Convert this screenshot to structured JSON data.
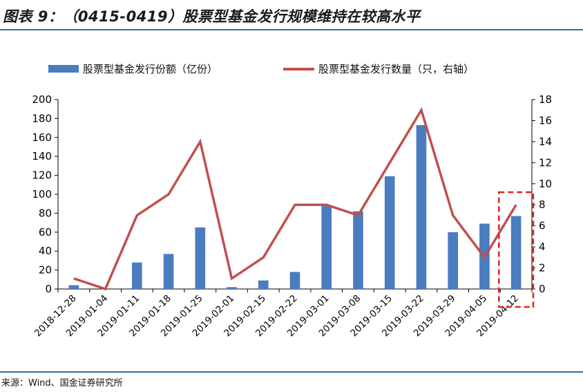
{
  "title": "图表 9：（0415-0419）股票型基金发行规模维持在较高水平",
  "source": "来源：Wind、国金证券研究所",
  "colors": {
    "bar": "#4a7dbf",
    "line": "#c0504d",
    "rule": "#2e6fa8",
    "highlight_box": "#e0241b"
  },
  "chart_data": {
    "type": "bar",
    "categories": [
      "2018-12-28",
      "2019-01-04",
      "2019-01-11",
      "2019-01-18",
      "2019-01-25",
      "2019-02-01",
      "2019-02-15",
      "2019-02-22",
      "2019-03-01",
      "2019-03-08",
      "2019-03-15",
      "2019-03-22",
      "2019-03-29",
      "2019-04-05",
      "2019-04-12"
    ],
    "series": [
      {
        "name": "股票型基金发行份额（亿份）",
        "type": "bar",
        "axis": "left",
        "values": [
          4,
          0,
          28,
          37,
          65,
          2,
          9,
          18,
          88,
          82,
          119,
          173,
          60,
          69,
          77
        ]
      },
      {
        "name": "股票型基金发行数量（只，右轴）",
        "type": "line",
        "axis": "right",
        "values": [
          1,
          0,
          7,
          9,
          14,
          1,
          3,
          8,
          8,
          7,
          12,
          17,
          7,
          3,
          8
        ]
      }
    ],
    "ylim_left": [
      0,
      200
    ],
    "yticks_left": [
      0,
      20,
      40,
      60,
      80,
      100,
      120,
      140,
      160,
      180,
      200
    ],
    "ylim_right": [
      0,
      18
    ],
    "yticks_right": [
      0,
      2,
      4,
      6,
      8,
      10,
      12,
      14,
      16,
      18
    ],
    "grid": false,
    "legend_position": "top",
    "highlight_category": "2019-04-12"
  }
}
